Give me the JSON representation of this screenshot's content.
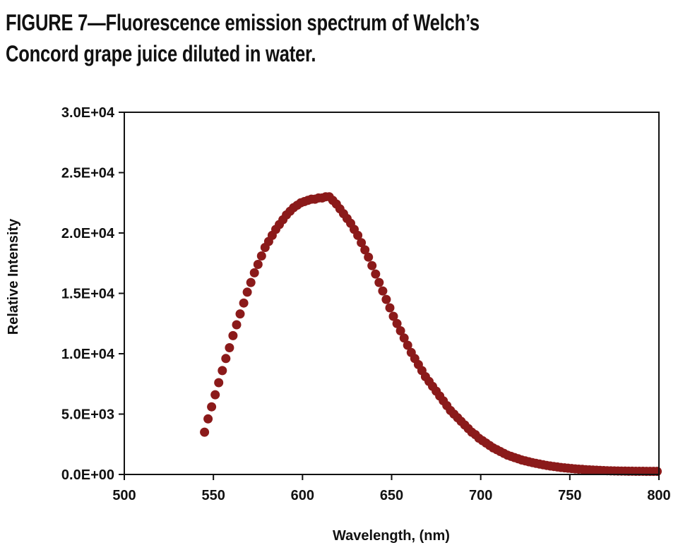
{
  "figure": {
    "caption_line1": "FIGURE 7—Fluorescence emission spectrum of Welch’s",
    "caption_line2": "Concord grape juice diluted in water."
  },
  "chart_data": {
    "type": "scatter",
    "title": "FIGURE 7—Fluorescence emission spectrum of Welch’s Concord grape juice diluted in water.",
    "xlabel": "Wavelength, (nm)",
    "ylabel": "Relative Intensity",
    "xlim": [
      500,
      800
    ],
    "ylim": [
      0,
      30000
    ],
    "x_ticks": [
      500,
      550,
      600,
      650,
      700,
      750,
      800
    ],
    "x_tick_labels": [
      "500",
      "550",
      "600",
      "650",
      "700",
      "750",
      "800"
    ],
    "y_ticks": [
      0,
      5000,
      10000,
      15000,
      20000,
      25000,
      30000
    ],
    "y_tick_labels": [
      "0.0E+00",
      "5.0E+03",
      "1.0E+04",
      "1.5E+04",
      "2.0E+04",
      "2.5E+04",
      "3.0E+04"
    ],
    "grid": false,
    "legend": "none",
    "marker_color": "#8b1a1a",
    "series": [
      {
        "x": [
          545,
          547,
          549,
          551,
          553,
          555,
          557,
          559,
          561,
          563,
          565,
          567,
          569,
          571,
          573,
          575,
          577,
          579,
          581,
          583,
          585,
          587,
          589,
          591,
          593,
          595,
          597,
          599,
          601,
          603,
          605,
          607,
          609,
          611,
          613,
          615,
          617,
          619,
          621,
          623,
          625,
          627,
          629,
          631,
          633,
          635,
          637,
          639,
          641,
          643,
          645,
          647,
          649,
          651,
          653,
          655,
          657,
          659,
          661,
          663,
          665,
          667,
          669,
          671,
          673,
          675,
          677,
          679,
          681,
          683,
          685,
          687,
          689,
          691,
          693,
          695,
          697,
          699,
          701,
          703,
          705,
          707,
          709,
          711,
          713,
          715,
          717,
          719,
          721,
          723,
          725,
          727,
          729,
          731,
          733,
          735,
          737,
          739,
          741,
          743,
          745,
          747,
          749,
          751,
          753,
          755,
          757,
          759,
          761,
          763,
          765,
          767,
          769,
          771,
          773,
          775,
          777,
          779,
          781,
          783,
          785,
          787,
          789,
          791,
          793,
          795,
          797,
          799
        ],
        "y": [
          3500,
          4600,
          5600,
          6600,
          7600,
          8600,
          9600,
          10500,
          11500,
          12400,
          13300,
          14200,
          15100,
          15900,
          16700,
          17400,
          18100,
          18800,
          19300,
          19800,
          20300,
          20700,
          21100,
          21500,
          21800,
          22100,
          22300,
          22500,
          22600,
          22700,
          22800,
          22800,
          22900,
          22900,
          23000,
          23000,
          22700,
          22400,
          22000,
          21600,
          21200,
          20800,
          20300,
          19800,
          19200,
          18600,
          18000,
          17300,
          16600,
          15900,
          15200,
          14500,
          13800,
          13100,
          12500,
          11900,
          11300,
          10700,
          10100,
          9600,
          9100,
          8600,
          8100,
          7700,
          7300,
          6900,
          6500,
          6100,
          5700,
          5300,
          5000,
          4700,
          4400,
          4100,
          3800,
          3500,
          3300,
          3000,
          2800,
          2600,
          2400,
          2200,
          2050,
          1900,
          1750,
          1600,
          1500,
          1400,
          1300,
          1200,
          1120,
          1050,
          980,
          920,
          860,
          800,
          750,
          700,
          660,
          620,
          580,
          550,
          520,
          490,
          460,
          440,
          420,
          400,
          380,
          365,
          350,
          335,
          320,
          310,
          300,
          290,
          285,
          280,
          275,
          270,
          268,
          266,
          264,
          262,
          260,
          258,
          256,
          255
        ]
      }
    ]
  }
}
